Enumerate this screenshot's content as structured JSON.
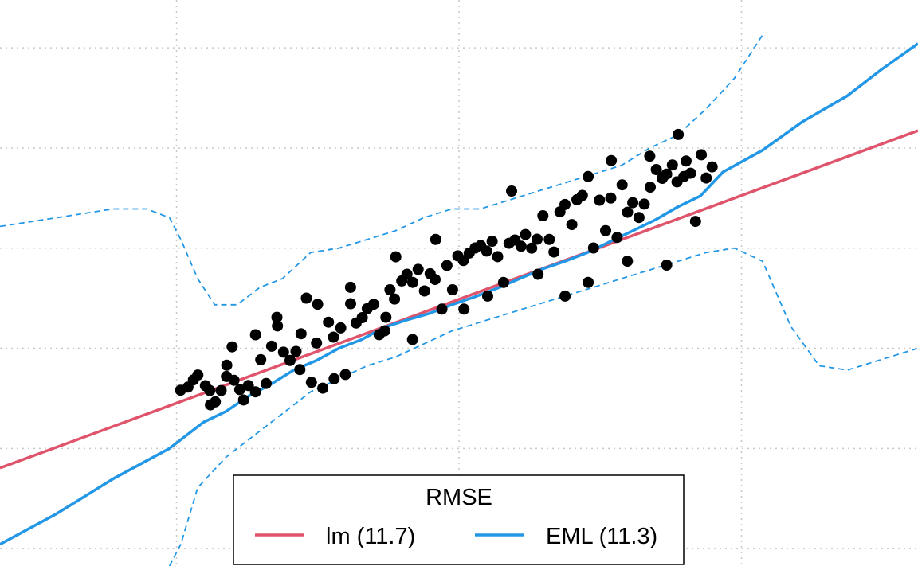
{
  "chart_data": {
    "type": "scatter",
    "title": "",
    "xlabel": "",
    "ylabel": "",
    "xlim": [
      0,
      1.625
    ],
    "ylim": [
      0,
      1.3
    ],
    "grid": true,
    "legend": {
      "title": "RMSE",
      "placement": "bottom-center",
      "entries": [
        {
          "label": "lm (11.7)",
          "color": "#df536b"
        },
        {
          "label": "EML (11.3)",
          "color": "#2297e6"
        }
      ]
    },
    "colors": {
      "points": "#000000",
      "lm": "#df536b",
      "eml": "#2297e6",
      "grid": "#c8c8c8"
    },
    "lm_line": [
      [
        0,
        0.225
      ],
      [
        1.625,
        1.0
      ]
    ],
    "points": [
      [
        0.3197,
        0.4038
      ],
      [
        0.3328,
        0.4109
      ],
      [
        0.3423,
        0.4274
      ],
      [
        0.3503,
        0.4386
      ],
      [
        0.3636,
        0.4141
      ],
      [
        0.3714,
        0.4029
      ],
      [
        0.3812,
        0.3771
      ],
      [
        0.3914,
        0.4029
      ],
      [
        0.4009,
        0.4354
      ],
      [
        0.4109,
        0.5034
      ],
      [
        0.4141,
        0.4265
      ],
      [
        0.4245,
        0.4052
      ],
      [
        0.4312,
        0.3812
      ],
      [
        0.4395,
        0.4145
      ],
      [
        0.4524,
        0.5312
      ],
      [
        0.4616,
        0.4738
      ],
      [
        0.4711,
        0.4193
      ],
      [
        0.4808,
        0.5049
      ],
      [
        0.4912,
        0.5515
      ],
      [
        0.5019,
        0.4912
      ],
      [
        0.5134,
        0.4721
      ],
      [
        0.5241,
        0.4928
      ],
      [
        0.5329,
        0.5335
      ],
      [
        0.5424,
        0.6152
      ],
      [
        0.5512,
        0.4218
      ],
      [
        0.5603,
        0.5121
      ],
      [
        0.5715,
        0.4085
      ],
      [
        0.5814,
        0.5601
      ],
      [
        0.5903,
        0.5256
      ],
      [
        0.6032,
        0.5468
      ],
      [
        0.6115,
        0.44
      ],
      [
        0.6207,
        0.6025
      ],
      [
        0.6304,
        0.5581
      ],
      [
        0.6412,
        0.5704
      ],
      [
        0.6502,
        0.5912
      ],
      [
        0.6614,
        0.6012
      ],
      [
        0.6711,
        0.5314
      ],
      [
        0.6831,
        0.5712
      ],
      [
        0.6903,
        0.6345
      ],
      [
        0.6984,
        0.6132
      ],
      [
        0.7112,
        0.6548
      ],
      [
        0.7204,
        0.6702
      ],
      [
        0.7306,
        0.6515
      ],
      [
        0.7402,
        0.6812
      ],
      [
        0.7514,
        0.6318
      ],
      [
        0.7614,
        0.6712
      ],
      [
        0.7702,
        0.6581
      ],
      [
        0.7823,
        0.5901
      ],
      [
        0.7912,
        0.6902
      ],
      [
        0.8011,
        0.6345
      ],
      [
        0.8104,
        0.7124
      ],
      [
        0.8203,
        0.7015
      ],
      [
        0.8306,
        0.7187
      ],
      [
        0.8412,
        0.7304
      ],
      [
        0.8508,
        0.7362
      ],
      [
        0.8615,
        0.7234
      ],
      [
        0.8712,
        0.7458
      ],
      [
        0.8809,
        0.7105
      ],
      [
        0.8914,
        0.6512
      ],
      [
        0.9011,
        0.7412
      ],
      [
        0.9116,
        0.7487
      ],
      [
        0.9224,
        0.7345
      ],
      [
        0.9302,
        0.7613
      ],
      [
        0.9412,
        0.7301
      ],
      [
        0.9508,
        0.7505
      ],
      [
        0.9611,
        0.8045
      ],
      [
        0.9723,
        0.7501
      ],
      [
        0.9806,
        0.7212
      ],
      [
        0.9912,
        0.8134
      ],
      [
        1.0001,
        0.8303
      ],
      [
        1.0123,
        0.7842
      ],
      [
        1.0213,
        0.8412
      ],
      [
        1.0309,
        0.8512
      ],
      [
        1.0412,
        0.8945
      ],
      [
        1.0506,
        0.7305
      ],
      [
        1.0612,
        0.8401
      ],
      [
        1.0721,
        0.7704
      ],
      [
        1.0812,
        0.8452
      ],
      [
        1.0923,
        0.7545
      ],
      [
        1.1012,
        0.8754
      ],
      [
        1.1109,
        0.8125
      ],
      [
        1.1201,
        0.8345
      ],
      [
        1.1312,
        0.8005
      ],
      [
        1.1405,
        0.8312
      ],
      [
        1.1511,
        0.8702
      ],
      [
        1.1617,
        0.9105
      ],
      [
        1.1723,
        0.8904
      ],
      [
        1.1801,
        0.9001
      ],
      [
        1.1902,
        0.9212
      ],
      [
        1.1985,
        0.8823
      ],
      [
        1.2106,
        0.8945
      ],
      [
        1.2145,
        0.9301
      ],
      [
        1.2224,
        0.9021
      ],
      [
        1.2312,
        0.7915
      ],
      [
        1.2415,
        0.9445
      ],
      [
        1.2501,
        0.8912
      ],
      [
        1.2606,
        0.9167
      ],
      [
        0.3725,
        0.3701
      ],
      [
        0.4014,
        0.4612
      ],
      [
        0.4523,
        0.4001
      ],
      [
        0.4902,
        0.5712
      ],
      [
        0.5308,
        0.4512
      ],
      [
        0.5623,
        0.6012
      ],
      [
        0.5914,
        0.4301
      ],
      [
        0.6205,
        0.6401
      ],
      [
        0.6812,
        0.5401
      ],
      [
        0.7006,
        0.7101
      ],
      [
        0.7302,
        0.5201
      ],
      [
        0.7713,
        0.7501
      ],
      [
        0.8212,
        0.5901
      ],
      [
        0.8633,
        0.6201
      ],
      [
        0.9056,
        0.8612
      ],
      [
        0.9525,
        0.6701
      ],
      [
        1.0002,
        0.6201
      ],
      [
        1.0412,
        0.6515
      ],
      [
        1.0821,
        0.9312
      ],
      [
        1.1106,
        0.7001
      ],
      [
        1.1502,
        0.9412
      ],
      [
        1.1801,
        0.6912
      ],
      [
        1.2005,
        0.9912
      ]
    ],
    "eml_fit": [
      [
        0.0,
        0.05
      ],
      [
        0.1,
        0.12
      ],
      [
        0.2,
        0.2
      ],
      [
        0.3,
        0.27
      ],
      [
        0.36,
        0.33
      ],
      [
        0.4,
        0.355
      ],
      [
        0.44,
        0.39
      ],
      [
        0.48,
        0.418
      ],
      [
        0.52,
        0.45
      ],
      [
        0.56,
        0.472
      ],
      [
        0.6,
        0.5
      ],
      [
        0.64,
        0.52
      ],
      [
        0.68,
        0.548
      ],
      [
        0.72,
        0.565
      ],
      [
        0.76,
        0.58
      ],
      [
        0.8,
        0.6
      ],
      [
        0.84,
        0.618
      ],
      [
        0.88,
        0.638
      ],
      [
        0.92,
        0.66
      ],
      [
        0.96,
        0.682
      ],
      [
        1.0,
        0.7
      ],
      [
        1.04,
        0.72
      ],
      [
        1.08,
        0.745
      ],
      [
        1.12,
        0.77
      ],
      [
        1.16,
        0.795
      ],
      [
        1.2,
        0.825
      ],
      [
        1.24,
        0.85
      ],
      [
        1.28,
        0.905
      ],
      [
        1.35,
        0.955
      ],
      [
        1.42,
        1.02
      ],
      [
        1.5,
        1.08
      ],
      [
        1.56,
        1.14
      ],
      [
        1.625,
        1.2
      ]
    ],
    "eml_upper": [
      [
        0.0,
        0.78
      ],
      [
        0.1,
        0.8
      ],
      [
        0.2,
        0.82
      ],
      [
        0.26,
        0.82
      ],
      [
        0.3,
        0.8
      ],
      [
        0.32,
        0.75
      ],
      [
        0.35,
        0.66
      ],
      [
        0.38,
        0.6
      ],
      [
        0.42,
        0.6
      ],
      [
        0.46,
        0.64
      ],
      [
        0.5,
        0.66
      ],
      [
        0.55,
        0.72
      ],
      [
        0.6,
        0.73
      ],
      [
        0.65,
        0.75
      ],
      [
        0.7,
        0.77
      ],
      [
        0.75,
        0.8
      ],
      [
        0.8,
        0.82
      ],
      [
        0.85,
        0.82
      ],
      [
        0.9,
        0.84
      ],
      [
        0.95,
        0.86
      ],
      [
        1.0,
        0.88
      ],
      [
        1.05,
        0.9
      ],
      [
        1.1,
        0.92
      ],
      [
        1.15,
        0.96
      ],
      [
        1.2,
        0.99
      ],
      [
        1.25,
        1.05
      ],
      [
        1.3,
        1.12
      ],
      [
        1.35,
        1.22
      ]
    ],
    "eml_lower": [
      [
        0.3,
        0.0
      ],
      [
        0.32,
        0.05
      ],
      [
        0.35,
        0.18
      ],
      [
        0.4,
        0.25
      ],
      [
        0.45,
        0.3
      ],
      [
        0.5,
        0.35
      ],
      [
        0.55,
        0.4
      ],
      [
        0.6,
        0.43
      ],
      [
        0.65,
        0.46
      ],
      [
        0.7,
        0.48
      ],
      [
        0.75,
        0.51
      ],
      [
        0.8,
        0.54
      ],
      [
        0.85,
        0.56
      ],
      [
        0.9,
        0.58
      ],
      [
        0.95,
        0.6
      ],
      [
        1.0,
        0.62
      ],
      [
        1.05,
        0.64
      ],
      [
        1.1,
        0.66
      ],
      [
        1.15,
        0.68
      ],
      [
        1.2,
        0.7
      ],
      [
        1.25,
        0.72
      ],
      [
        1.3,
        0.73
      ],
      [
        1.35,
        0.7
      ],
      [
        1.4,
        0.55
      ],
      [
        1.45,
        0.46
      ],
      [
        1.5,
        0.45
      ],
      [
        1.55,
        0.47
      ],
      [
        1.625,
        0.5
      ]
    ]
  }
}
